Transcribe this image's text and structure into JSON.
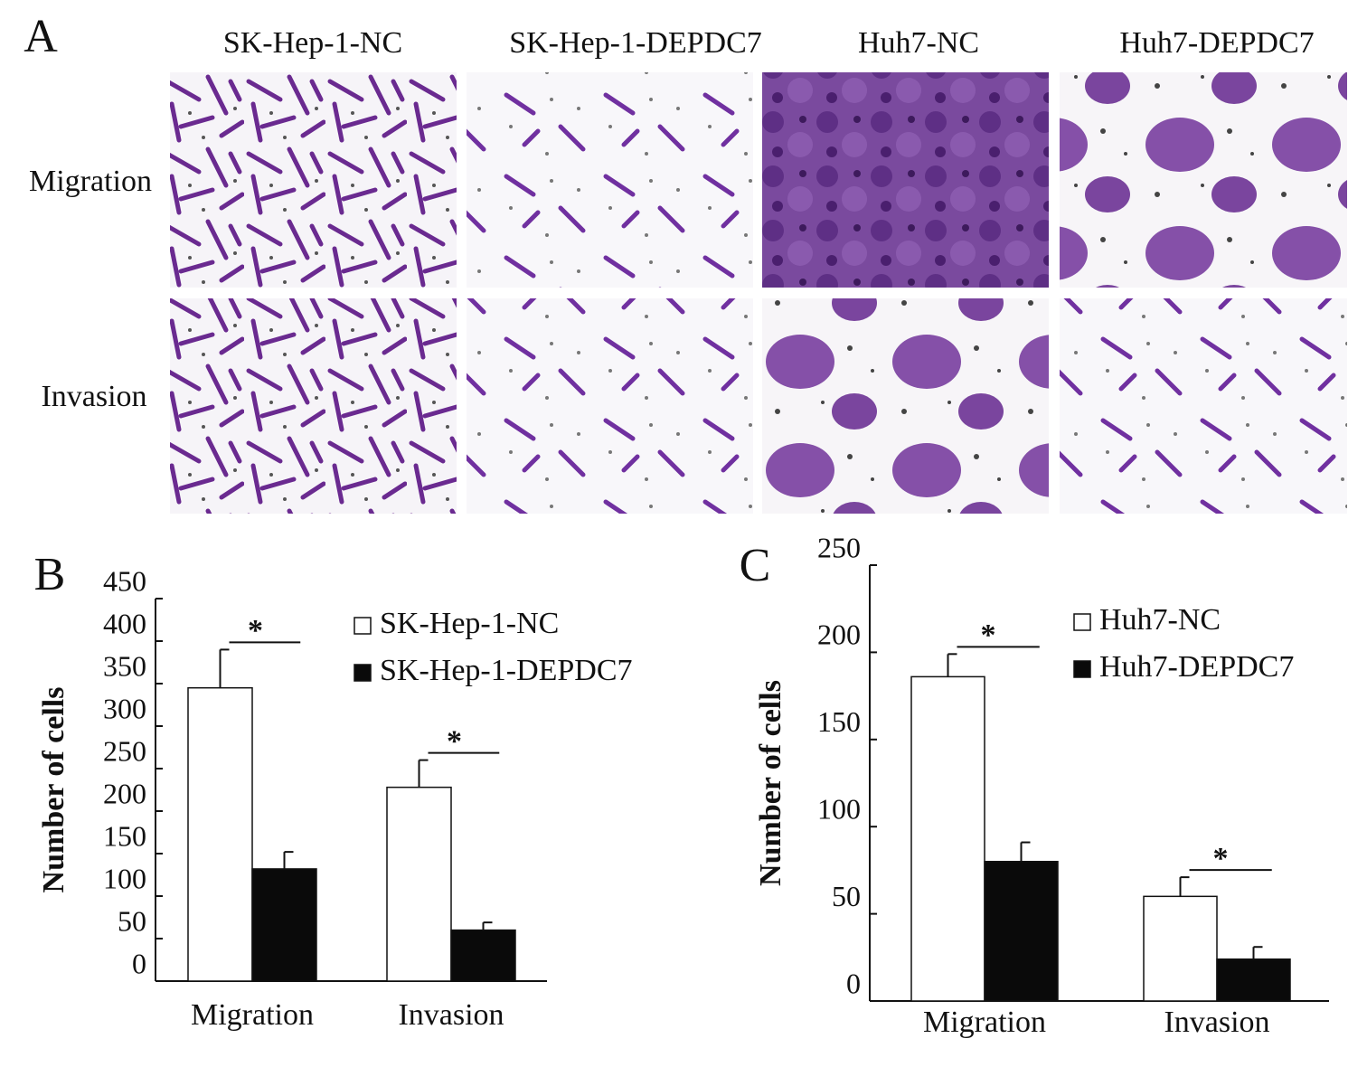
{
  "panel_a": {
    "label": "A",
    "columns": [
      "SK-Hep-1-NC",
      "SK-Hep-1-DEPDC7",
      "Huh7-NC",
      "Huh7-DEPDC7"
    ],
    "rows": [
      "Migration",
      "Invasion"
    ]
  },
  "chart_data": [
    {
      "type": "bar",
      "panel_label": "B",
      "ylabel": "Number of cells",
      "categories": [
        "Migration",
        "Invasion"
      ],
      "series": [
        {
          "name": "SK-Hep-1-NC",
          "color": "#ffffff",
          "values": [
            345,
            228
          ],
          "errors": [
            45,
            32
          ]
        },
        {
          "name": "SK-Hep-1-DEPDC7",
          "color": "#0a0a0a",
          "values": [
            132,
            60
          ],
          "errors": [
            20,
            9
          ]
        }
      ],
      "annotations": [
        "*",
        "*"
      ],
      "ylim": [
        0,
        450
      ],
      "yticks": [
        0,
        50,
        100,
        150,
        200,
        250,
        300,
        350,
        400,
        450
      ]
    },
    {
      "type": "bar",
      "panel_label": "C",
      "ylabel": "Number of cells",
      "categories": [
        "Migration",
        "Invasion"
      ],
      "series": [
        {
          "name": "Huh7-NC",
          "color": "#ffffff",
          "values": [
            186,
            60
          ],
          "errors": [
            13,
            11
          ]
        },
        {
          "name": "Huh7-DEPDC7",
          "color": "#0a0a0a",
          "values": [
            80,
            24
          ],
          "errors": [
            11,
            7
          ]
        }
      ],
      "annotations": [
        "*",
        "*"
      ],
      "ylim": [
        0,
        250
      ],
      "yticks": [
        0,
        50,
        100,
        150,
        200,
        250
      ]
    }
  ]
}
